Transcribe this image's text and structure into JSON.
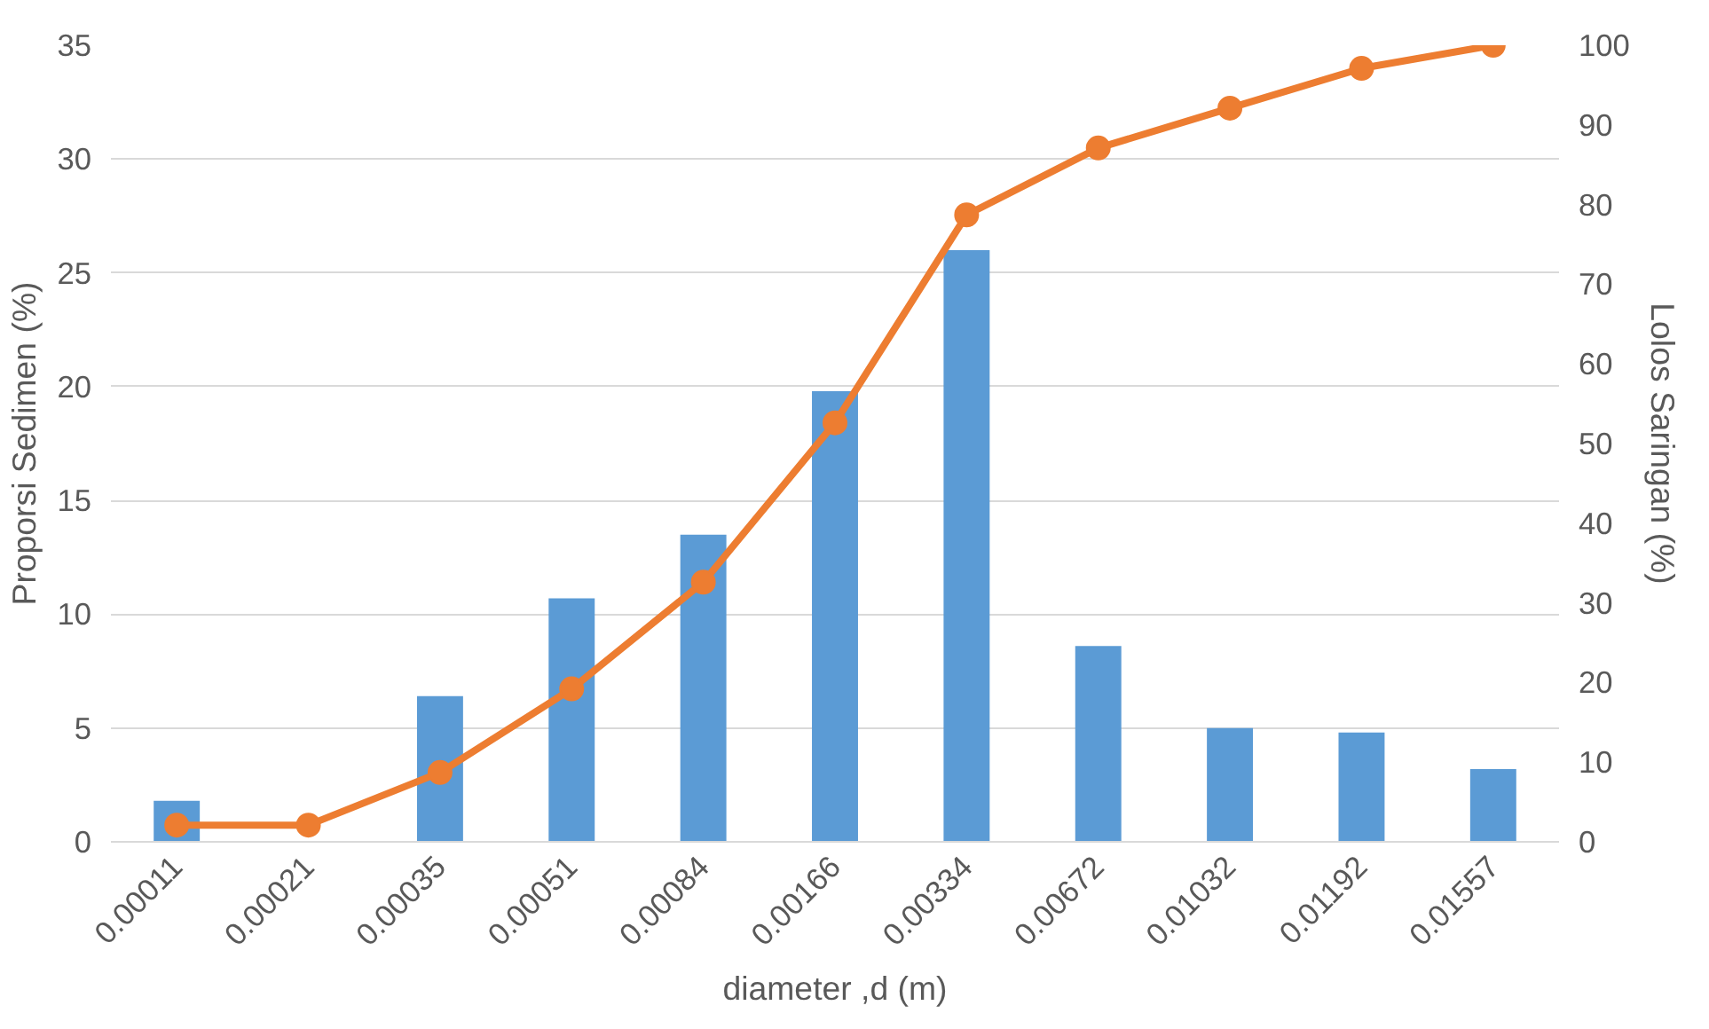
{
  "chart_data": {
    "type": "bar",
    "xlabel": "diameter ,d (m)",
    "ylabel": "Proporsi Sedimen (%)",
    "y2label": "Lolos Saringan (%)",
    "categories": [
      "0.00011",
      "0.00021",
      "0.00035",
      "0.00051",
      "0.00084",
      "0.00166",
      "0.00334",
      "0.00672",
      "0.01032",
      "0.01192",
      "0.01557"
    ],
    "ylim": [
      0,
      35
    ],
    "yticks": [
      0,
      5,
      10,
      15,
      20,
      25,
      30,
      35
    ],
    "y2lim": [
      0,
      100
    ],
    "y2ticks": [
      0,
      10,
      20,
      30,
      40,
      50,
      60,
      70,
      80,
      90,
      100
    ],
    "grid": "y",
    "series": [
      {
        "color": "#5b9bd5",
        "values": [
          1.8,
          0,
          6.4,
          10.7,
          13.5,
          19.8,
          26.0,
          8.6,
          5.0,
          4.8,
          3.2
        ]
      },
      {
        "type": "line",
        "axis": "y2",
        "color": "#ed7d31",
        "marker": "circle",
        "line_style": "solid",
        "values": [
          2.1,
          2.1,
          8.7,
          19.2,
          32.6,
          52.6,
          78.7,
          87.1,
          92.1,
          97.1,
          100
        ]
      }
    ]
  }
}
